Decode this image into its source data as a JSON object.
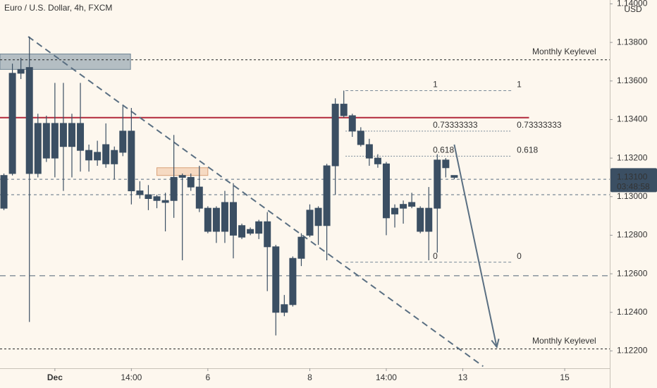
{
  "chart_data": {
    "type": "candlestick",
    "title": "Euro / U.S. Dollar, 4h, FXCM",
    "currency": "USD",
    "color": "#3b4f63",
    "x": [
      0,
      1,
      2,
      3,
      4,
      5,
      6,
      7,
      8,
      9,
      10,
      11,
      12,
      13,
      14,
      15,
      16,
      17,
      18,
      19,
      20,
      21,
      22,
      23,
      24,
      25,
      26,
      27,
      28,
      29,
      30,
      31,
      32,
      33,
      34,
      35,
      36,
      37,
      38,
      39,
      40,
      41,
      42,
      43,
      44,
      45,
      46,
      47,
      48,
      49,
      50,
      51,
      52,
      53
    ],
    "open": [
      1.1294,
      1.1312,
      1.1364,
      1.1367,
      1.1312,
      1.1338,
      1.132,
      1.1338,
      1.1326,
      1.1338,
      1.1324,
      1.1319,
      1.1327,
      1.1317,
      1.1323,
      1.1334,
      1.1303,
      1.1301,
      1.13,
      1.1298,
      1.1298,
      1.1311,
      1.131,
      1.1305,
      1.1294,
      1.1294,
      1.1282,
      1.1297,
      1.1279,
      1.1281,
      1.1281,
      1.1287,
      1.1274,
      1.124,
      1.1244,
      1.1268,
      1.128,
      1.1294,
      1.1285,
      1.1316,
      1.1348,
      1.1342,
      1.1334,
      1.1327,
      1.132,
      1.1317,
      1.1291,
      1.1294,
      1.1295,
      1.1294,
      1.1282,
      1.1294,
      1.1319,
      1.1311
    ],
    "high": [
      1.1312,
      1.1369,
      1.1372,
      1.1383,
      1.1343,
      1.1342,
      1.1359,
      1.1359,
      1.1343,
      1.1359,
      1.1327,
      1.1329,
      1.1338,
      1.1326,
      1.1347,
      1.1346,
      1.1308,
      1.1306,
      1.1301,
      1.1302,
      1.1332,
      1.1312,
      1.1312,
      1.1316,
      1.1295,
      1.1295,
      1.1303,
      1.1307,
      1.1286,
      1.1284,
      1.1288,
      1.1292,
      1.1275,
      1.1249,
      1.1269,
      1.1281,
      1.1296,
      1.1295,
      1.1317,
      1.1351,
      1.1355,
      1.1343,
      1.1336,
      1.133,
      1.1322,
      1.1318,
      1.1296,
      1.1298,
      1.1302,
      1.1295,
      1.1305,
      1.1322,
      1.132,
      1.1311
    ],
    "low": [
      1.1293,
      1.1311,
      1.1361,
      1.1235,
      1.131,
      1.1318,
      1.131,
      1.1303,
      1.131,
      1.1313,
      1.1313,
      1.1316,
      1.1315,
      1.1309,
      1.1321,
      1.1296,
      1.1299,
      1.1293,
      1.1294,
      1.1282,
      1.1289,
      1.1267,
      1.1303,
      1.1292,
      1.1281,
      1.1276,
      1.1276,
      1.1268,
      1.1278,
      1.128,
      1.1278,
      1.1251,
      1.1228,
      1.1238,
      1.1243,
      1.1264,
      1.1279,
      1.1275,
      1.1267,
      1.1301,
      1.1341,
      1.1331,
      1.1326,
      1.1316,
      1.1315,
      1.128,
      1.1284,
      1.1286,
      1.1294,
      1.1281,
      1.1267,
      1.1271,
      1.131,
      1.1309
    ],
    "close": [
      1.1311,
      1.1364,
      1.1366,
      1.1312,
      1.1338,
      1.132,
      1.1338,
      1.1326,
      1.1338,
      1.1324,
      1.1319,
      1.1323,
      1.1317,
      1.1324,
      1.1334,
      1.1303,
      1.1301,
      1.1299,
      1.1298,
      1.1297,
      1.131,
      1.131,
      1.1305,
      1.1294,
      1.1282,
      1.1282,
      1.1297,
      1.128,
      1.1285,
      1.1283,
      1.1287,
      1.1274,
      1.124,
      1.1244,
      1.1268,
      1.1279,
      1.1293,
      1.1285,
      1.1316,
      1.1348,
      1.1342,
      1.1334,
      1.1327,
      1.132,
      1.1317,
      1.1289,
      1.1294,
      1.1296,
      1.1297,
      1.1282,
      1.1294,
      1.1319,
      1.1315,
      1.131
    ],
    "xlim": [
      -0.46,
      71.3
    ],
    "xticks": [
      {
        "value": 6,
        "label": "Dec"
      },
      {
        "value": 15,
        "label": "14:00"
      },
      {
        "value": 24,
        "label": "6"
      },
      {
        "value": 36,
        "label": "8"
      },
      {
        "value": 45,
        "label": "14:00"
      },
      {
        "value": 54,
        "label": "13"
      },
      {
        "value": 66,
        "label": "15"
      }
    ],
    "ylim": [
      1.1211,
      1.1402
    ],
    "yticks": [
      {
        "value": 1.122,
        "label": "1.12200"
      },
      {
        "value": 1.124,
        "label": "1.12400"
      },
      {
        "value": 1.126,
        "label": "1.12600"
      },
      {
        "value": 1.128,
        "label": "1.12800"
      },
      {
        "value": 1.13,
        "label": "1.13000"
      },
      {
        "value": 1.132,
        "label": "1.13200"
      },
      {
        "value": 1.134,
        "label": "1.13400"
      },
      {
        "value": 1.136,
        "label": "1.13600"
      },
      {
        "value": 1.138,
        "label": "1.13800"
      },
      {
        "value": 1.14,
        "label": "1.14000"
      }
    ],
    "last_price": {
      "value": 1.131,
      "label": "1.13100",
      "countdown": "03:48:58"
    },
    "levels": [
      {
        "value": 1.1371,
        "label": "Monthly Keylevel",
        "color": "#222222",
        "dash": "3 3"
      },
      {
        "value": 1.1221,
        "label": "Monthly Keylevel",
        "color": "#222222",
        "dash": "3 3"
      },
      {
        "value": 1.1259,
        "color": "#4f6375",
        "dash": "8 6"
      },
      {
        "value": 1.1309,
        "color": "#5a6f82",
        "dash": "4 4"
      },
      {
        "value": 1.1301,
        "color": "#5a6f82",
        "dash": "4 4"
      },
      {
        "value": 1.1341,
        "color": "#b2283a",
        "xend": 61.8
      }
    ],
    "fib": {
      "x": [
        40.2,
        59.7
      ],
      "color": "#7a8a99",
      "levels": [
        {
          "ratio": 1,
          "value": 1.1355
        },
        {
          "ratio": 0.73333333,
          "value": 1.1334
        },
        {
          "ratio": 0.618,
          "value": 1.1321
        },
        {
          "ratio": 0,
          "value": 1.1266
        }
      ]
    },
    "boxes": [
      {
        "x": [
          -0.46,
          14.9
        ],
        "y": [
          1.1366,
          1.1374
        ],
        "fill": "rgba(120,144,160,0.55)",
        "stroke": "#6f8594"
      },
      {
        "x": [
          18,
          24
        ],
        "y": [
          1.1311,
          1.1315
        ],
        "fill": "rgba(240,190,150,0.5)",
        "stroke": "#d9a27a"
      }
    ],
    "trendline": {
      "points": [
        [
          2.86,
          1.1383
        ],
        [
          56.4,
          1.1212
        ]
      ],
      "color": "#5a6f82"
    },
    "arrow": {
      "points": [
        [
          53,
          1.1327
        ],
        [
          58,
          1.1222
        ]
      ],
      "color": "#5a6f82"
    }
  }
}
